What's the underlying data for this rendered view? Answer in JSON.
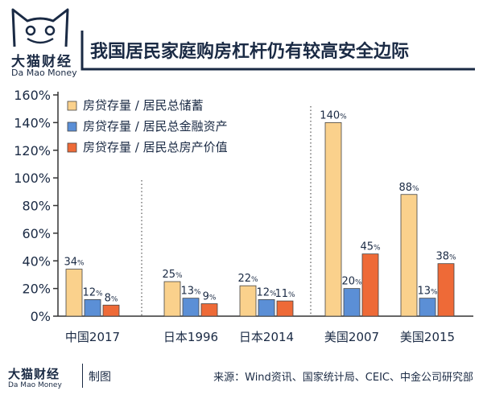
{
  "brand": {
    "name_cn": "大猫财经",
    "name_en": "Da Mao Money"
  },
  "title": "我国居民家庭购房杠杆仍有较高安全边际",
  "footer": {
    "brand_cn": "大猫财经",
    "brand_en": "Da Mao Money",
    "made_by": "制图",
    "source": "来源：Wind资讯、国家统计局、CEIC、中金公司研究部"
  },
  "colors": {
    "text": "#1a2a44",
    "axis": "#333333",
    "series": [
      "#fad18c",
      "#5b8fd6",
      "#ee6a37"
    ]
  },
  "chart_data": {
    "type": "bar",
    "title": "我国居民家庭购房杠杆仍有较高安全边际",
    "categories": [
      "中国2017",
      "日本1996",
      "日本2014",
      "美国2007",
      "美国2015"
    ],
    "series": [
      {
        "name": "房贷存量 / 居民总储蓄",
        "values": [
          34,
          25,
          22,
          140,
          88
        ]
      },
      {
        "name": "房贷存量 / 居民总金融资产",
        "values": [
          12,
          13,
          12,
          20,
          13
        ]
      },
      {
        "name": "房贷存量 / 居民总房产价值",
        "values": [
          8,
          9,
          11,
          45,
          38
        ]
      }
    ],
    "value_labels": [
      [
        "34%",
        "25%",
        "22%",
        "140%",
        "88%"
      ],
      [
        "12%",
        "13%",
        "12%",
        "20%",
        "13%"
      ],
      [
        "8%",
        "9%",
        "11%",
        "45%",
        "38%"
      ]
    ],
    "yticks": [
      "0%",
      "20%",
      "40%",
      "60%",
      "80%",
      "100%",
      "120%",
      "140%",
      "160%"
    ],
    "ylim": [
      0,
      160
    ],
    "xlabel": "",
    "ylabel": "",
    "grid": false,
    "legend_position": "top-left",
    "group_separators": "dotted"
  }
}
